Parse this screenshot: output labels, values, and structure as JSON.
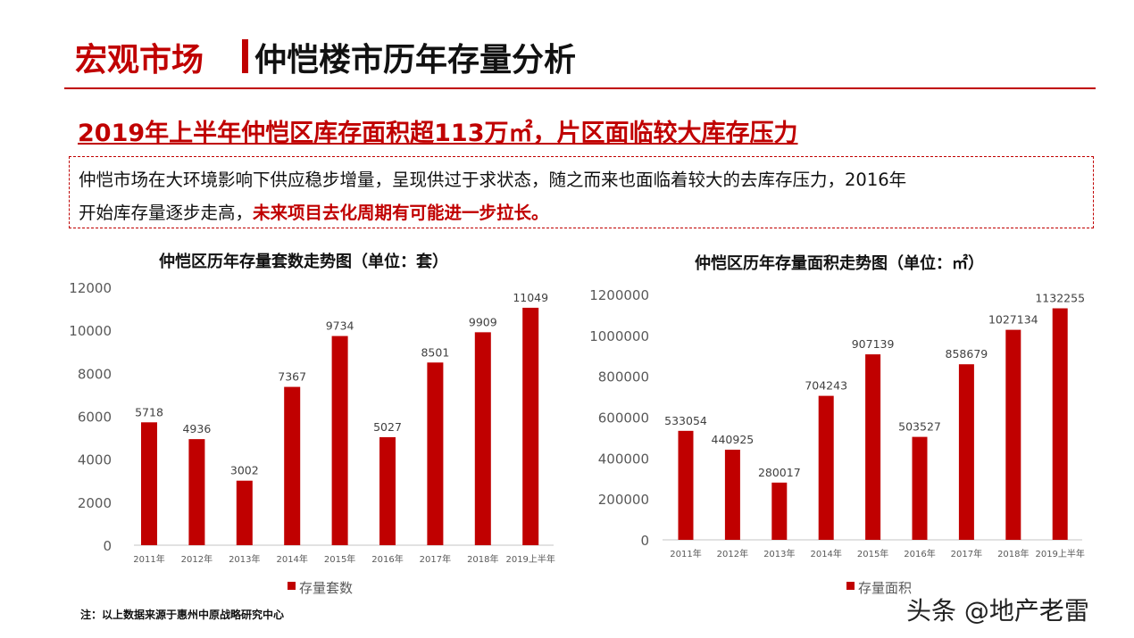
{
  "header": {
    "section": "宏观市场",
    "title": "仲恺楼市历年存量分析"
  },
  "subtitle": "2019年上半年仲恺区库存面积超113万㎡，片区面临较大库存压力",
  "body": {
    "text_line1": "仲恺市场在大环境影响下供应稳步增量，呈现供过于求状态，随之而来也面临着较大的去库存压力，2016年",
    "text_line2_plain": "开始库存量逐步走高，",
    "text_line2_highlight": "未来项目去化周期有可能进一步拉长。"
  },
  "footnote": "注：以上数据来源于惠州中原战略研究中心",
  "watermark": "头条 @地产老雷",
  "colors": {
    "accent": "#c00000",
    "bar": "#c00000"
  },
  "chart_data": [
    {
      "type": "bar",
      "title": "仲恺区历年存量套数走势图（单位：套）",
      "categories": [
        "2011年",
        "2012年",
        "2013年",
        "2014年",
        "2015年",
        "2016年",
        "2017年",
        "2018年",
        "2019上半年"
      ],
      "series": [
        {
          "name": "存量套数",
          "values": [
            5718,
            4936,
            3002,
            7367,
            9734,
            5027,
            8501,
            9909,
            11049
          ]
        }
      ],
      "ylim": [
        0,
        12000
      ],
      "yticks": [
        0,
        2000,
        4000,
        6000,
        8000,
        10000,
        12000
      ],
      "grid": false,
      "legend": "bottom"
    },
    {
      "type": "bar",
      "title": "仲恺区历年存量面积走势图（单位：㎡）",
      "categories": [
        "2011年",
        "2012年",
        "2013年",
        "2014年",
        "2015年",
        "2016年",
        "2017年",
        "2018年",
        "2019上半年"
      ],
      "series": [
        {
          "name": "存量面积",
          "values": [
            533054,
            440925,
            280017,
            704243,
            907139,
            503527,
            858679,
            1027134,
            1132255
          ]
        }
      ],
      "ylim": [
        0,
        1200000
      ],
      "yticks": [
        0,
        200000,
        400000,
        600000,
        800000,
        1000000,
        1200000
      ],
      "grid": false,
      "legend": "bottom"
    }
  ]
}
